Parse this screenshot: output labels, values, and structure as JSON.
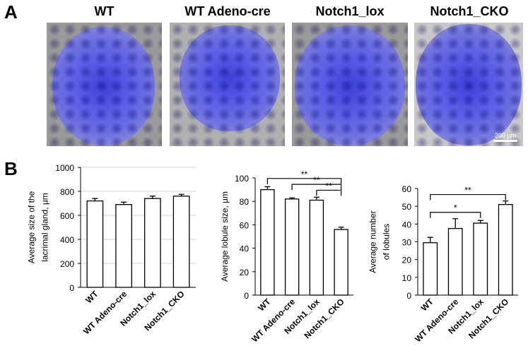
{
  "panel_labels": [
    "A",
    "B"
  ],
  "images": {
    "titles": [
      "WT",
      "WT Adeno-cre",
      "Notch1_lox",
      "Notch1_CKO"
    ],
    "scale_bar": "200 µm"
  },
  "chart_data": [
    {
      "type": "bar",
      "ylabel": [
        "Average size of the",
        "lacrimal gland, µm"
      ],
      "categories": [
        "WT",
        "WT Adeno-cre",
        "Notch1_lox",
        "Notch1_CKO"
      ],
      "values": [
        720,
        690,
        740,
        760
      ],
      "errors": [
        20,
        20,
        20,
        15
      ],
      "color": "#ffffff",
      "edgecolor": "#000000",
      "ylim": [
        0,
        1000
      ],
      "yticks": [
        0,
        200,
        400,
        600,
        800,
        1000
      ],
      "grid": true
    },
    {
      "type": "bar",
      "ylabel": [
        "Average lobule size, µm"
      ],
      "categories": [
        "WT",
        "WT Adeno-cre",
        "Notch1_lox",
        "Notch1_CKO"
      ],
      "values": [
        90,
        82,
        81,
        56
      ],
      "errors": [
        2.5,
        1,
        2.5,
        2
      ],
      "color": "#ffffff",
      "edgecolor": "#000000",
      "ylim": [
        0,
        100
      ],
      "yticks": [
        0,
        20,
        40,
        60,
        80,
        100
      ],
      "grid": false,
      "annotations": [
        {
          "label": "**",
          "from": 2,
          "to": 3
        },
        {
          "label": "**",
          "from": 1,
          "to": 3
        },
        {
          "label": "**",
          "from": 0,
          "to": 3
        }
      ]
    },
    {
      "type": "bar",
      "ylabel": [
        "Average number",
        "of lobules"
      ],
      "categories": [
        "WT",
        "WT Adeno-cre",
        "Notch1_lox",
        "Notch1_CKO"
      ],
      "values": [
        29.5,
        37.5,
        40.5,
        51
      ],
      "errors": [
        3,
        5.5,
        1.5,
        2
      ],
      "color": "#ffffff",
      "edgecolor": "#000000",
      "ylim": [
        0,
        60
      ],
      "yticks": [
        0,
        10,
        20,
        30,
        40,
        50,
        60
      ],
      "grid": false,
      "annotations": [
        {
          "label": "*",
          "from": 0,
          "to": 2
        },
        {
          "label": "**",
          "from": 0,
          "to": 3
        }
      ]
    }
  ]
}
